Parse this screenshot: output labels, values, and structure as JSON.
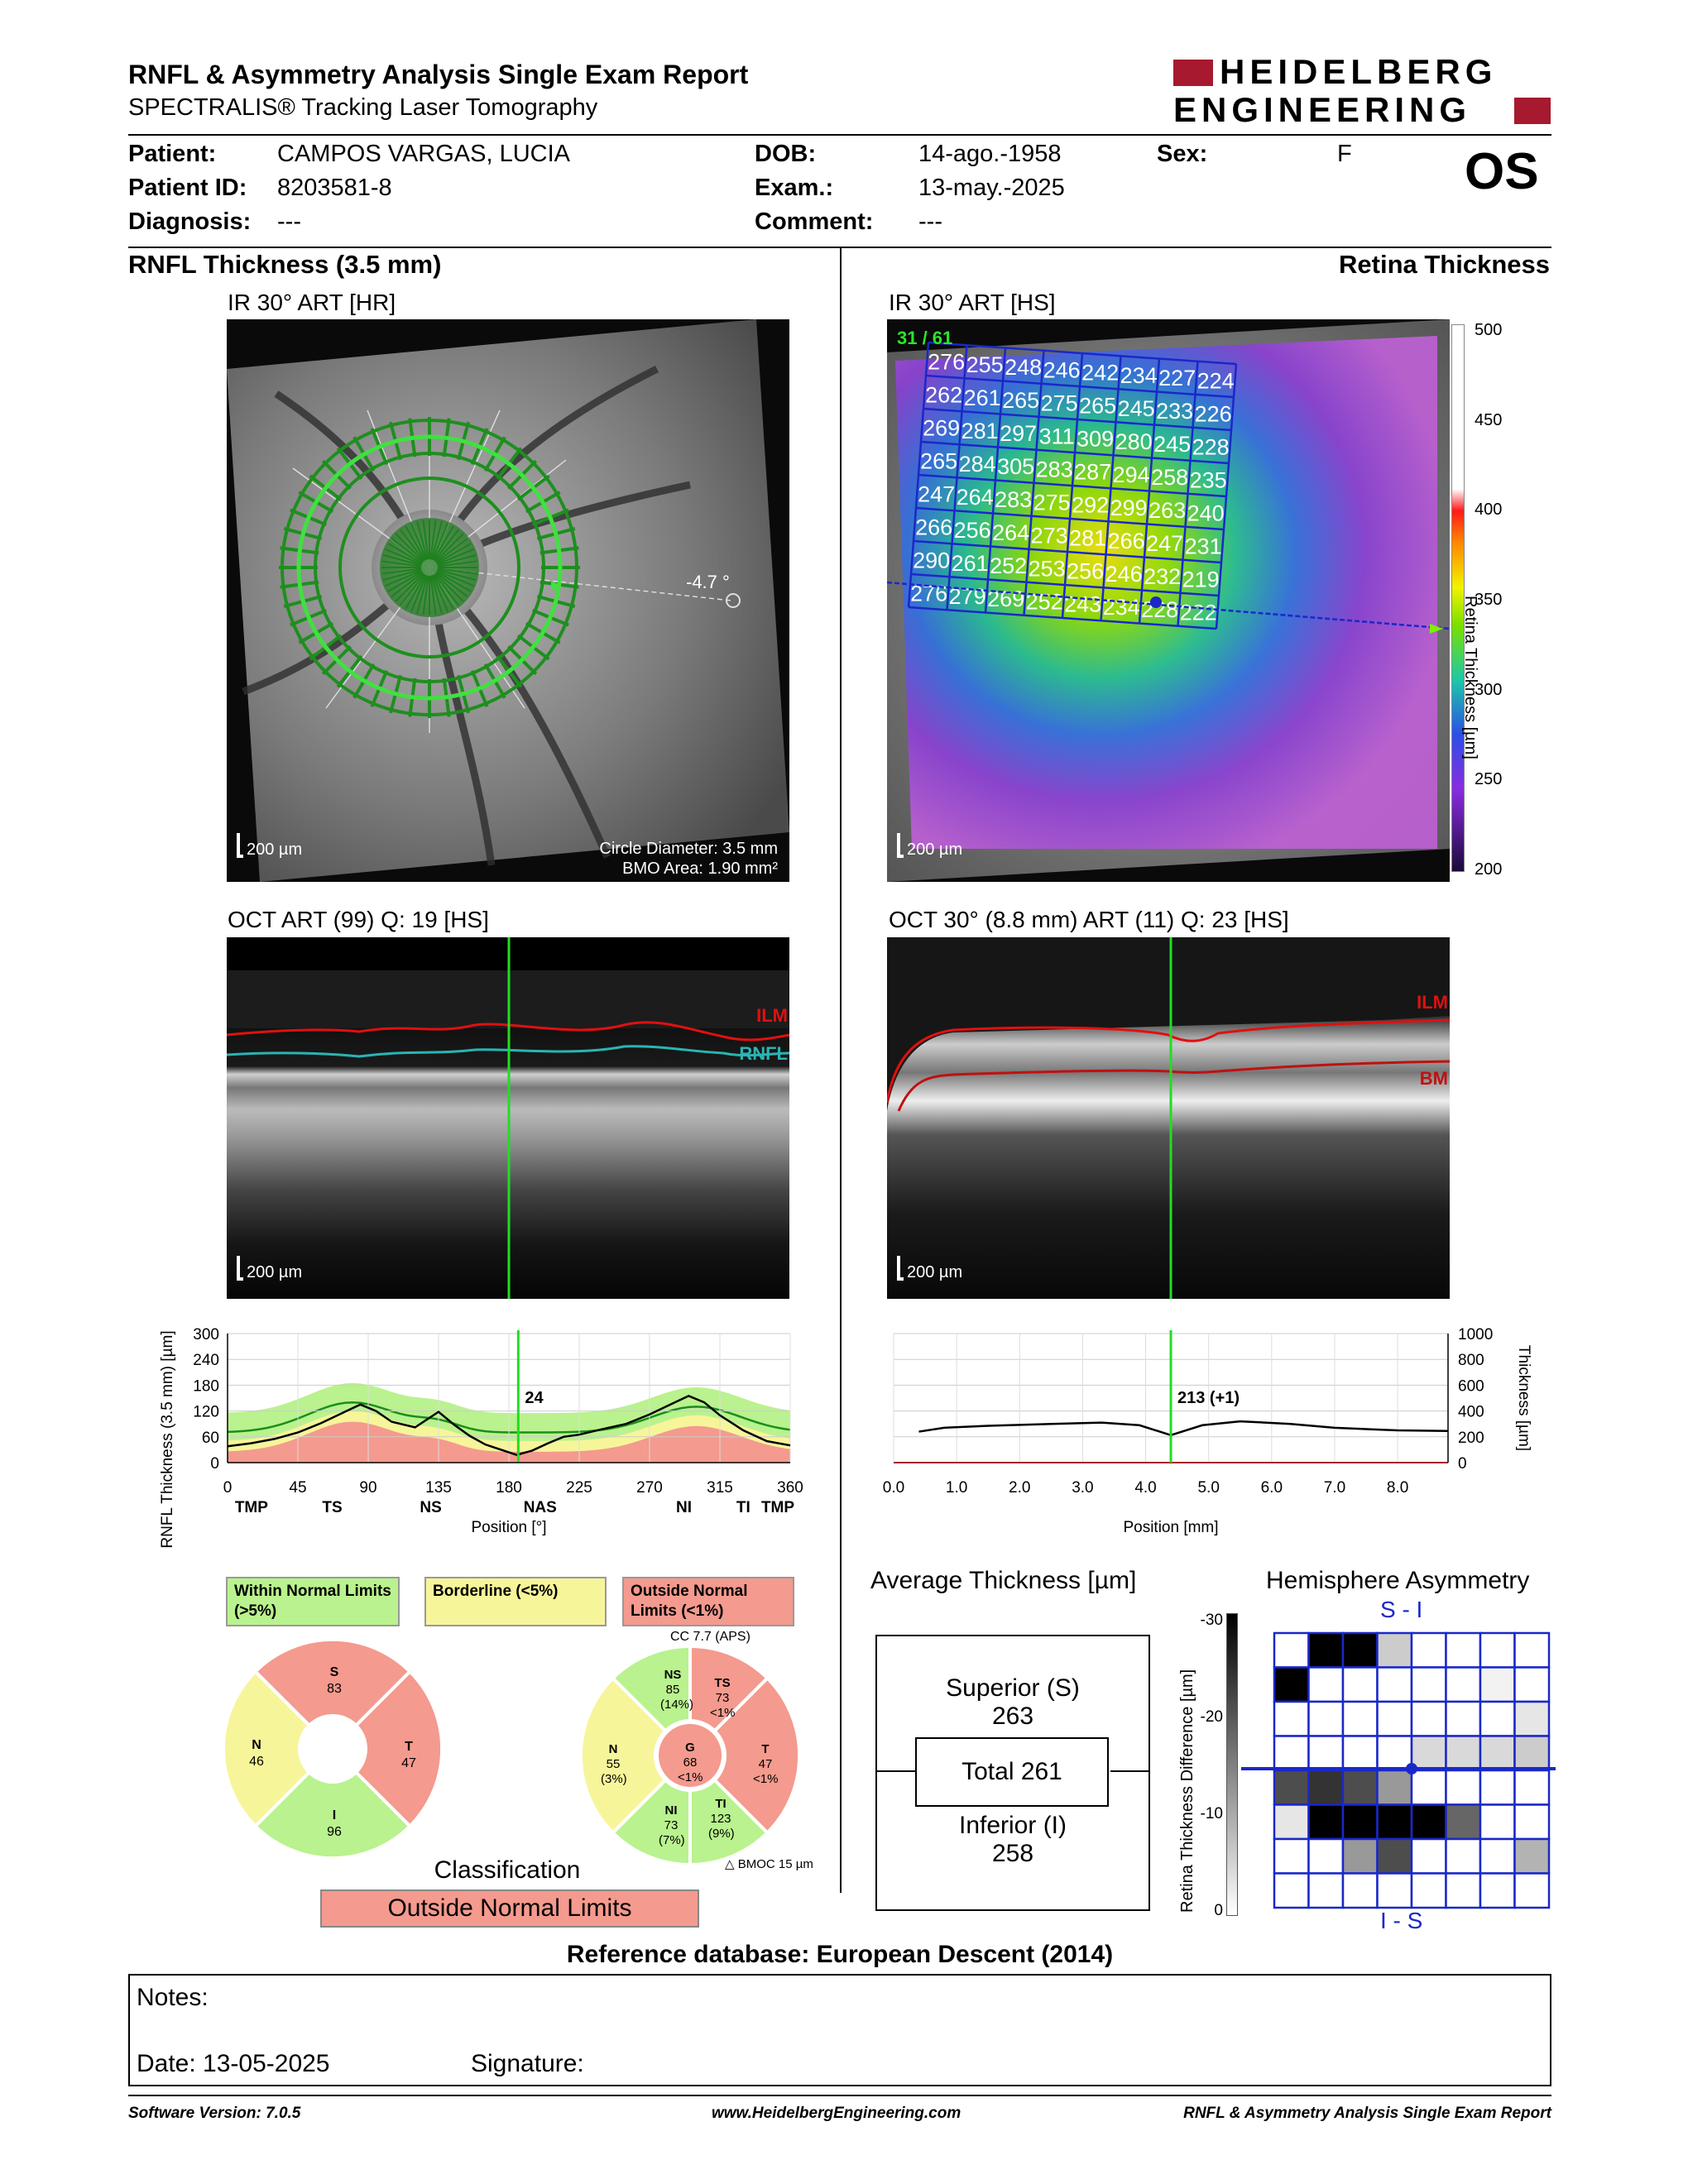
{
  "header": {
    "title": "RNFL & Asymmetry Analysis Single Exam Report",
    "subtitle": "SPECTRALIS® Tracking Laser Tomography",
    "brand_line1": "HEIDELBERG",
    "brand_line2": "ENGINEERING"
  },
  "patient": {
    "patient_label": "Patient:",
    "patient_value": "CAMPOS VARGAS, LUCIA",
    "id_label": "Patient ID:",
    "id_value": "8203581-8",
    "diag_label": "Diagnosis:",
    "diag_value": "---",
    "dob_label": "DOB:",
    "dob_value": "14-ago.-1958",
    "exam_label": "Exam.:",
    "exam_value": "13-may.-2025",
    "comment_label": "Comment:",
    "comment_value": "---",
    "sex_label": "Sex:",
    "sex_value": "F",
    "eye": "OS"
  },
  "left": {
    "section_title": "RNFL Thickness (3.5 mm)",
    "ir_label": "IR 30° ART [HR]",
    "ir_scale": "200 µm",
    "angle": "-4.7 °",
    "circle_diameter": "Circle Diameter: 3.5 mm",
    "bmo_area": "BMO Area: 1.90 mm²",
    "oct_label": "OCT ART (99) Q: 19 [HS]",
    "oct_scale": "200 µm",
    "ilm": "ILM",
    "rnfl": "RNFL"
  },
  "right": {
    "section_title": "Retina Thickness",
    "ir_label": "IR 30° ART [HS]",
    "ir_scale": "200 µm",
    "frame": "31 / 61",
    "oct_label": "OCT 30° (8.8 mm) ART (11) Q: 23 [HS]",
    "oct_scale": "200 µm",
    "ilm": "ILM",
    "bm": "BM",
    "colorbar_ticks": [
      "500",
      "450",
      "400",
      "350",
      "300",
      "250",
      "200"
    ],
    "colorbar_label": "Retina Thickness [µm]",
    "grid": [
      [
        "276",
        "255",
        "248",
        "246",
        "242",
        "234",
        "227",
        "224"
      ],
      [
        "262",
        "261",
        "265",
        "275",
        "265",
        "245",
        "233",
        "226"
      ],
      [
        "269",
        "281",
        "297",
        "311",
        "309",
        "280",
        "245",
        "228"
      ],
      [
        "265",
        "284",
        "305",
        "283",
        "287",
        "294",
        "258",
        "235"
      ],
      [
        "247",
        "264",
        "283",
        "275",
        "292",
        "299",
        "263",
        "240"
      ],
      [
        "266",
        "256",
        "264",
        "273",
        "281",
        "266",
        "247",
        "231"
      ],
      [
        "290",
        "261",
        "252",
        "253",
        "256",
        "246",
        "232",
        "219"
      ],
      [
        "276",
        "279",
        "269",
        "252",
        "243",
        "234",
        "228",
        "222"
      ]
    ]
  },
  "chart_data": [
    {
      "type": "line",
      "ylabel": "RNFL Thickness (3.5 mm) [µm]",
      "xlabel": "Position [°]",
      "ylim": [
        0,
        300
      ],
      "xlim": [
        0,
        360
      ],
      "yticks": [
        "300",
        "240",
        "180",
        "120",
        "60",
        "0"
      ],
      "xticks": [
        "0",
        "45",
        "90",
        "135",
        "180",
        "225",
        "270",
        "315",
        "360"
      ],
      "region_labels": [
        "TMP",
        "TS",
        "NS",
        "NAS",
        "NI",
        "TI",
        "TMP"
      ],
      "cursor_value": "24",
      "cursor_x": 186,
      "series": [
        {
          "name": "Measured",
          "x": [
            0,
            15,
            30,
            45,
            60,
            75,
            85,
            95,
            105,
            120,
            135,
            145,
            155,
            165,
            175,
            185,
            195,
            205,
            215,
            225,
            240,
            255,
            270,
            285,
            295,
            305,
            315,
            330,
            345,
            360
          ],
          "values": [
            38,
            45,
            55,
            70,
            92,
            118,
            135,
            120,
            95,
            82,
            118,
            88,
            62,
            42,
            30,
            18,
            28,
            45,
            60,
            65,
            78,
            90,
            112,
            138,
            155,
            140,
            110,
            75,
            50,
            40
          ]
        }
      ]
    },
    {
      "type": "line",
      "ylabel": "Thickness [µm]",
      "xlabel": "Position [mm]",
      "ylim": [
        0,
        1000
      ],
      "xlim": [
        0,
        8.8
      ],
      "yticks": [
        "1000",
        "800",
        "600",
        "400",
        "200",
        "0"
      ],
      "xticks": [
        "0.0",
        "1.0",
        "2.0",
        "3.0",
        "4.0",
        "5.0",
        "6.0",
        "7.0",
        "8.0"
      ],
      "cursor_value": "213 (+1)",
      "cursor_x": 4.4,
      "series": [
        {
          "name": "Retina Thickness",
          "x": [
            0.4,
            0.8,
            1.5,
            2.5,
            3.3,
            3.9,
            4.4,
            4.9,
            5.5,
            6.3,
            7.0,
            8.0,
            8.8
          ],
          "values": [
            240,
            270,
            285,
            300,
            310,
            290,
            213,
            290,
            320,
            300,
            270,
            250,
            245
          ]
        }
      ]
    }
  ],
  "legend": {
    "within": "Within Normal Limits (>5%)",
    "borderline": "Borderline (<5%)",
    "outside": "Outside Normal Limits (<1%)"
  },
  "sectors_left": {
    "s_label": "S",
    "s_val": "83",
    "n_label": "N",
    "n_val": "46",
    "t_label": "T",
    "t_val": "47",
    "i_label": "I",
    "i_val": "96"
  },
  "sectors_right": {
    "cc": "CC 7.7 (APS)",
    "ns_label": "NS",
    "ns_val": "85",
    "ns_pct": "(14%)",
    "ts_label": "TS",
    "ts_val": "73",
    "ts_pct": "<1%",
    "n_label": "N",
    "n_val": "55",
    "n_pct": "(3%)",
    "g_label": "G",
    "g_val": "68",
    "g_pct": "<1%",
    "t_label": "T",
    "t_val": "47",
    "t_pct": "<1%",
    "ni_label": "NI",
    "ni_val": "73",
    "ni_pct": "(7%)",
    "ti_label": "TI",
    "ti_val": "123",
    "ti_pct": "(9%)",
    "bmoc": "BMOC 15 µm"
  },
  "classification": {
    "label": "Classification",
    "value": "Outside Normal Limits"
  },
  "avg_thickness": {
    "title": "Average Thickness [µm]",
    "superior": "Superior (S)",
    "superior_val": "263",
    "total": "Total 261",
    "inferior": "Inferior (I)",
    "inferior_val": "258"
  },
  "asymmetry": {
    "title": "Hemisphere Asymmetry",
    "top_label": "S - I",
    "bottom_label": "I - S",
    "axis_label": "Retina Thickness Difference [µm]",
    "axis_ticks": [
      "-30",
      "-20",
      "-10",
      "0"
    ]
  },
  "reference": "Reference database: European Descent (2014)",
  "notes": {
    "notes_label": "Notes:",
    "date_label": "Date: 13-05-2025",
    "signature_label": "Signature:"
  },
  "footer": {
    "software": "Software Version: 7.0.5",
    "website": "www.HeidelbergEngineering.com",
    "report": "RNFL & Asymmetry Analysis Single Exam Report"
  },
  "colors": {
    "green": "#b9f28e",
    "yellow": "#f7f59a",
    "red": "#f49a8e",
    "brand_red": "#a6192e",
    "grid_blue": "#1a28c8"
  }
}
